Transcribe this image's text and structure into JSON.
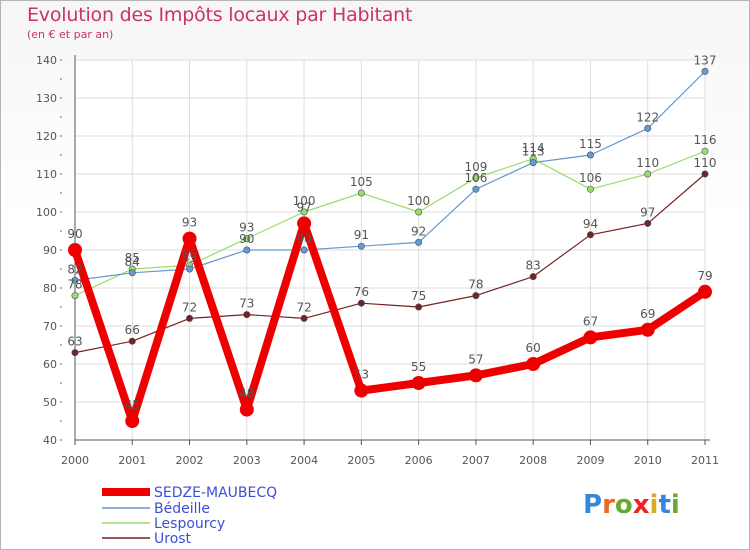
{
  "title": "Evolution des Impôts locaux par Habitant",
  "subtitle": "(en € et par an)",
  "chart_data": {
    "type": "line",
    "title": "Evolution des Impôts locaux par Habitant",
    "subtitle": "(en € et par an)",
    "xlabel": "",
    "ylabel": "",
    "ylim": [
      40,
      140
    ],
    "yticks": [
      40,
      50,
      60,
      70,
      80,
      90,
      100,
      110,
      120,
      130,
      140
    ],
    "grid": true,
    "legend": "bottom-left",
    "categories": [
      "2000",
      "2001",
      "2002",
      "2003",
      "2004",
      "2005",
      "2006",
      "2007",
      "2008",
      "2009",
      "2010",
      "2011"
    ],
    "series": [
      {
        "name": "SEDZE-MAUBECQ",
        "color": "#ee0000",
        "values": [
          90,
          45,
          93,
          48,
          97,
          53,
          55,
          57,
          60,
          67,
          69,
          79
        ]
      },
      {
        "name": "Bédeille",
        "color": "#6699cc",
        "values": [
          82,
          84,
          85,
          90,
          90,
          91,
          92,
          106,
          113,
          115,
          122,
          137
        ]
      },
      {
        "name": "Lespourcy",
        "color": "#99dd66",
        "values": [
          78,
          85,
          86,
          93,
          100,
          105,
          100,
          109,
          114,
          106,
          110,
          116
        ]
      },
      {
        "name": "Urost",
        "color": "#772222",
        "values": [
          63,
          66,
          72,
          73,
          72,
          76,
          75,
          78,
          83,
          94,
          97,
          110
        ]
      }
    ]
  },
  "logo": {
    "letters": [
      "P",
      "r",
      "o",
      "x",
      "i",
      "t",
      "i"
    ],
    "colors": [
      "#3388dd",
      "#ee6622",
      "#66aa33",
      "#ee2222",
      "#ddaa22",
      "#3388dd",
      "#66aa33"
    ]
  }
}
